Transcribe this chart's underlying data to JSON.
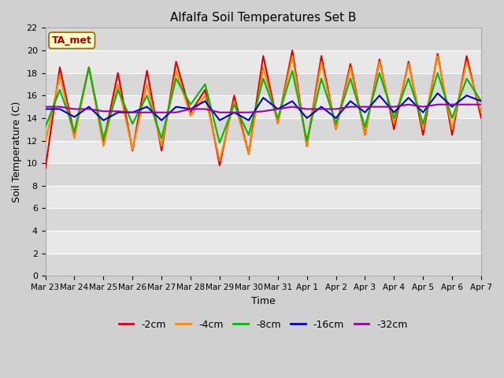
{
  "title": "Alfalfa Soil Temperatures Set B",
  "xlabel": "Time",
  "ylabel": "Soil Temperature (C)",
  "ylim": [
    0,
    22
  ],
  "yticks": [
    0,
    2,
    4,
    6,
    8,
    10,
    12,
    14,
    16,
    18,
    20,
    22
  ],
  "annotation_text": "TA_met",
  "fig_facecolor": "#d0d0d0",
  "plot_facecolor": "#e0e0e0",
  "band_light": "#e8e8e8",
  "band_dark": "#d8d8d8",
  "legend_labels": [
    "-2cm",
    "-4cm",
    "-8cm",
    "-16cm",
    "-32cm"
  ],
  "line_colors": [
    "#dd0000",
    "#ff8800",
    "#00bb00",
    "#0000cc",
    "#9900aa"
  ],
  "line_width": 1.5,
  "x_dates": [
    "Mar 23",
    "Mar 24",
    "Mar 25",
    "Mar 26",
    "Mar 27",
    "Mar 28",
    "Mar 29",
    "Mar 30",
    "Mar 31",
    "Apr 1",
    "Apr 2",
    "Apr 3",
    "Apr 4",
    "Apr 5",
    "Apr 6",
    "Apr 7"
  ],
  "n_points": 31,
  "series_2cm": [
    9.5,
    18.5,
    12.5,
    18.5,
    11.8,
    18.0,
    11.1,
    18.2,
    11.1,
    19.0,
    14.5,
    16.5,
    9.8,
    16.0,
    10.8,
    19.5,
    13.5,
    20.0,
    11.5,
    19.5,
    13.0,
    18.8,
    12.5,
    19.2,
    13.0,
    19.0,
    12.5,
    19.7,
    12.5,
    19.5,
    14.0
  ],
  "series_4cm": [
    11.8,
    17.8,
    12.2,
    18.5,
    11.5,
    17.0,
    11.2,
    17.0,
    11.5,
    18.2,
    14.2,
    16.0,
    10.2,
    15.5,
    10.8,
    18.5,
    13.5,
    19.5,
    11.5,
    19.0,
    13.0,
    18.5,
    12.5,
    19.0,
    13.5,
    18.8,
    13.0,
    19.5,
    13.0,
    19.0,
    14.5
  ],
  "series_8cm": [
    13.2,
    16.5,
    12.8,
    18.5,
    12.2,
    16.5,
    13.5,
    16.0,
    12.2,
    17.5,
    15.2,
    17.0,
    11.8,
    15.2,
    12.5,
    17.5,
    14.0,
    18.2,
    12.0,
    17.5,
    13.5,
    17.5,
    13.2,
    18.0,
    14.0,
    17.5,
    13.5,
    18.0,
    14.0,
    17.5,
    15.5
  ],
  "series_16cm": [
    14.8,
    14.8,
    14.1,
    15.0,
    13.8,
    14.5,
    14.5,
    15.0,
    13.8,
    15.0,
    14.8,
    15.5,
    13.8,
    14.5,
    13.8,
    15.8,
    14.8,
    15.5,
    14.0,
    15.0,
    14.0,
    15.5,
    14.5,
    16.0,
    14.5,
    15.8,
    14.5,
    16.2,
    15.0,
    16.0,
    15.5
  ],
  "series_32cm": [
    15.0,
    15.0,
    14.8,
    14.8,
    14.6,
    14.6,
    14.5,
    14.5,
    14.5,
    14.5,
    14.8,
    14.8,
    14.5,
    14.5,
    14.5,
    14.6,
    14.8,
    15.0,
    14.8,
    14.8,
    14.8,
    15.0,
    15.0,
    15.0,
    15.0,
    15.2,
    15.0,
    15.2,
    15.2,
    15.2,
    15.2
  ]
}
